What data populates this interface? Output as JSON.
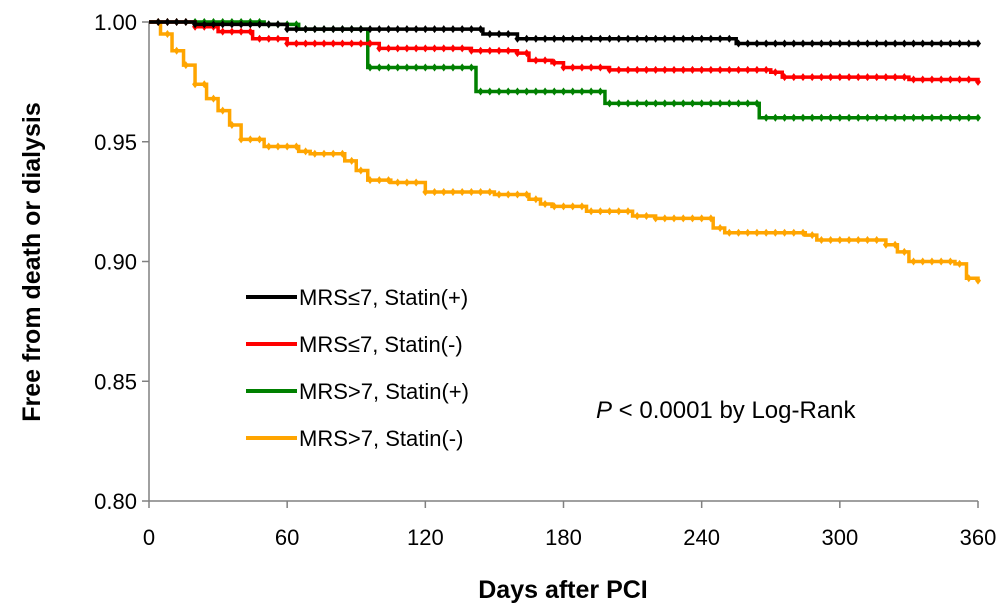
{
  "chart_data": {
    "type": "line",
    "xlabel": "Days after PCI",
    "ylabel": "Free from death or dialysis",
    "xlim": [
      0,
      360
    ],
    "ylim": [
      0.8,
      1.0
    ],
    "xticks": [
      0,
      60,
      120,
      180,
      240,
      300,
      360
    ],
    "yticks": [
      "0.80",
      "0.85",
      "0.90",
      "0.95",
      "1.00"
    ],
    "grid": false,
    "legend_position": "center-left",
    "annotation": {
      "italic": "P",
      "rest": " < 0.0001 by Log-Rank"
    },
    "series": [
      {
        "name": "MRS≤7, Statin(+)",
        "color": "#000000",
        "points": [
          [
            0,
            1.0
          ],
          [
            20,
            0.999
          ],
          [
            60,
            0.997
          ],
          [
            130,
            0.997
          ],
          [
            145,
            0.995
          ],
          [
            160,
            0.993
          ],
          [
            250,
            0.993
          ],
          [
            255,
            0.991
          ],
          [
            360,
            0.991
          ]
        ]
      },
      {
        "name": "MRS≤7, Statin(-)",
        "color": "#ff0000",
        "points": [
          [
            0,
            1.0
          ],
          [
            10,
            1.0
          ],
          [
            20,
            0.998
          ],
          [
            30,
            0.996
          ],
          [
            45,
            0.993
          ],
          [
            60,
            0.991
          ],
          [
            100,
            0.989
          ],
          [
            140,
            0.988
          ],
          [
            160,
            0.987
          ],
          [
            165,
            0.984
          ],
          [
            175,
            0.983
          ],
          [
            180,
            0.981
          ],
          [
            200,
            0.98
          ],
          [
            270,
            0.979
          ],
          [
            275,
            0.977
          ],
          [
            325,
            0.977
          ],
          [
            330,
            0.976
          ],
          [
            360,
            0.975
          ]
        ]
      },
      {
        "name": "MRS>7, Statin(+)",
        "color": "#008000",
        "points": [
          [
            0,
            1.0
          ],
          [
            40,
            1.0
          ],
          [
            50,
            0.999
          ],
          [
            62,
            0.999
          ],
          [
            65,
            0.997
          ],
          [
            90,
            0.997
          ],
          [
            95,
            0.981
          ],
          [
            140,
            0.981
          ],
          [
            142,
            0.971
          ],
          [
            195,
            0.971
          ],
          [
            198,
            0.966
          ],
          [
            262,
            0.966
          ],
          [
            265,
            0.96
          ],
          [
            360,
            0.96
          ]
        ]
      },
      {
        "name": "MRS>7, Statin(-)",
        "color": "#ffa500",
        "points": [
          [
            0,
            1.0
          ],
          [
            5,
            0.995
          ],
          [
            10,
            0.988
          ],
          [
            15,
            0.982
          ],
          [
            20,
            0.974
          ],
          [
            25,
            0.968
          ],
          [
            30,
            0.963
          ],
          [
            35,
            0.957
          ],
          [
            40,
            0.951
          ],
          [
            50,
            0.948
          ],
          [
            60,
            0.948
          ],
          [
            65,
            0.946
          ],
          [
            70,
            0.945
          ],
          [
            80,
            0.945
          ],
          [
            85,
            0.942
          ],
          [
            90,
            0.938
          ],
          [
            95,
            0.934
          ],
          [
            105,
            0.933
          ],
          [
            115,
            0.933
          ],
          [
            120,
            0.929
          ],
          [
            140,
            0.929
          ],
          [
            150,
            0.928
          ],
          [
            160,
            0.928
          ],
          [
            165,
            0.926
          ],
          [
            170,
            0.924
          ],
          [
            175,
            0.923
          ],
          [
            185,
            0.923
          ],
          [
            190,
            0.921
          ],
          [
            200,
            0.921
          ],
          [
            210,
            0.919
          ],
          [
            220,
            0.918
          ],
          [
            240,
            0.918
          ],
          [
            245,
            0.914
          ],
          [
            250,
            0.912
          ],
          [
            280,
            0.912
          ],
          [
            285,
            0.911
          ],
          [
            290,
            0.909
          ],
          [
            315,
            0.909
          ],
          [
            320,
            0.907
          ],
          [
            325,
            0.904
          ],
          [
            330,
            0.9
          ],
          [
            350,
            0.899
          ],
          [
            355,
            0.893
          ],
          [
            360,
            0.892
          ]
        ]
      }
    ]
  }
}
